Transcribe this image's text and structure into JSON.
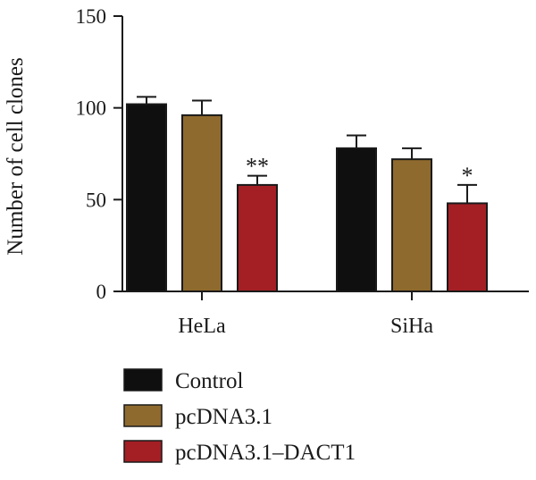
{
  "chart_data": {
    "type": "bar",
    "ylabel": "Number of cell clones",
    "xlabel": "",
    "ylim": [
      0,
      150
    ],
    "yticks": [
      0,
      50,
      100,
      150
    ],
    "categories": [
      "HeLa",
      "SiHa"
    ],
    "series": [
      {
        "name": "Control",
        "color": "#0f0f0f",
        "values": [
          102,
          78
        ],
        "errors": [
          4,
          7
        ],
        "annotations": [
          "",
          ""
        ]
      },
      {
        "name": "pcDNA3.1",
        "color": "#8f6a2e",
        "values": [
          96,
          72
        ],
        "errors": [
          8,
          6
        ],
        "annotations": [
          "",
          ""
        ]
      },
      {
        "name": "pcDNA3.1–DACT1",
        "color": "#a31f24",
        "values": [
          58,
          48
        ],
        "errors": [
          5,
          10
        ],
        "annotations": [
          "**",
          "*"
        ]
      }
    ],
    "legend_position": "bottom",
    "grid": false
  }
}
